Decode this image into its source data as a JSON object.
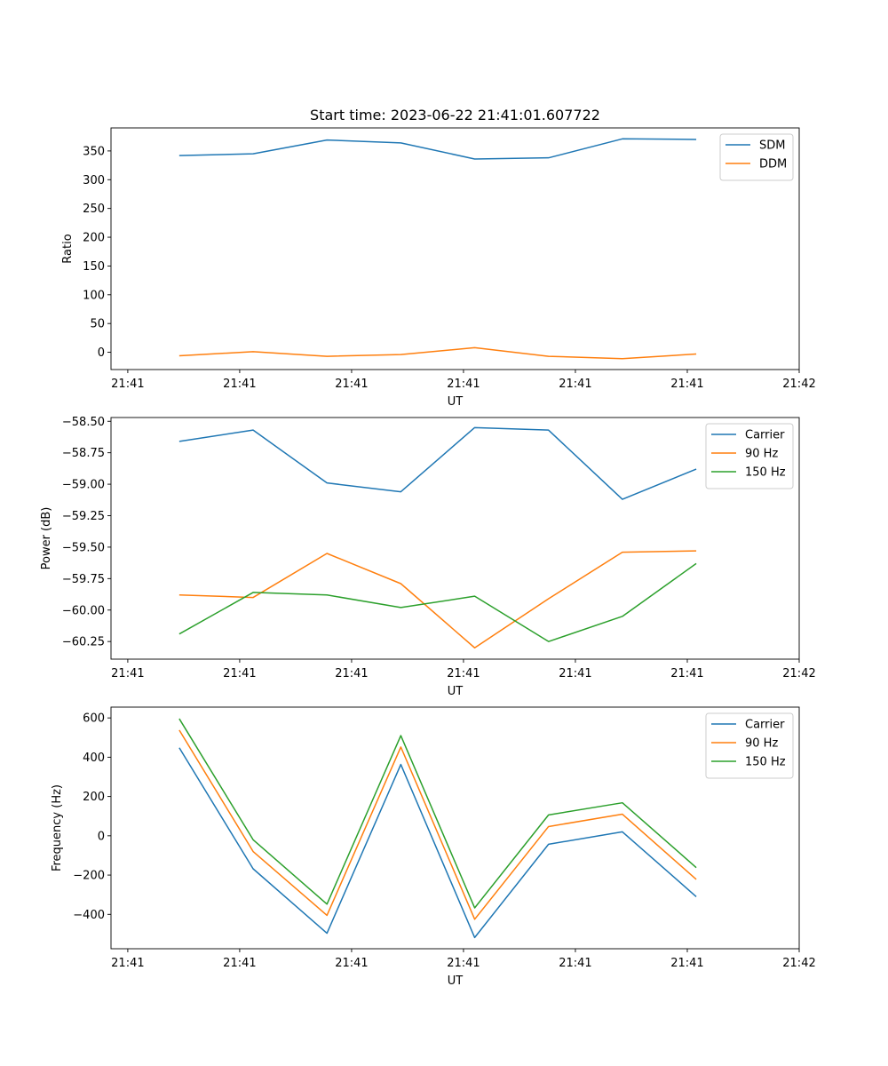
{
  "chart_data": [
    {
      "type": "line",
      "title": "Start time: 2023-06-22 21:41:01.607722",
      "xlabel": "UT",
      "ylabel": "Ratio",
      "x_tick_labels": [
        "21:41",
        "21:41",
        "21:41",
        "21:41",
        "21:41",
        "21:41",
        "21:42"
      ],
      "x_tick_positions": [
        -0.1,
        0.4,
        0.9,
        1.4,
        1.9,
        2.4,
        2.9
      ],
      "x": [
        0.13,
        0.46,
        0.79,
        1.12,
        1.45,
        1.78,
        2.11,
        2.44
      ],
      "xlim": [
        -0.175,
        2.9
      ],
      "ylim": [
        -30,
        390
      ],
      "y_ticks": [
        0,
        50,
        100,
        150,
        200,
        250,
        300,
        350
      ],
      "y_tick_labels": [
        "0",
        "50",
        "100",
        "150",
        "200",
        "250",
        "300",
        "350"
      ],
      "legend": "top-right",
      "series": [
        {
          "name": "SDM",
          "color": "#1f77b4",
          "values": [
            342,
            345,
            369,
            364,
            336,
            338,
            371,
            370
          ]
        },
        {
          "name": "DDM",
          "color": "#ff7f0e",
          "values": [
            -6,
            1,
            -7,
            -4,
            8,
            -7,
            -11,
            -3
          ]
        }
      ]
    },
    {
      "type": "line",
      "title": "",
      "xlabel": "UT",
      "ylabel": "Power (dB)",
      "x_tick_labels": [
        "21:41",
        "21:41",
        "21:41",
        "21:41",
        "21:41",
        "21:41",
        "21:42"
      ],
      "x_tick_positions": [
        -0.1,
        0.4,
        0.9,
        1.4,
        1.9,
        2.4,
        2.9
      ],
      "x": [
        0.13,
        0.46,
        0.79,
        1.12,
        1.45,
        1.78,
        2.11,
        2.44
      ],
      "xlim": [
        -0.175,
        2.9
      ],
      "ylim": [
        -60.39,
        -58.47
      ],
      "y_ticks": [
        -60.25,
        -60.0,
        -59.75,
        -59.5,
        -59.25,
        -59.0,
        -58.75,
        -58.5
      ],
      "y_tick_labels": [
        "−60.25",
        "−60.00",
        "−59.75",
        "−59.50",
        "−59.25",
        "−59.00",
        "−58.75",
        "−58.50"
      ],
      "legend": "top-right",
      "series": [
        {
          "name": "Carrier",
          "color": "#1f77b4",
          "values": [
            -58.66,
            -58.57,
            -58.99,
            -59.06,
            -58.55,
            -58.57,
            -59.12,
            -58.88
          ]
        },
        {
          "name": "90 Hz",
          "color": "#ff7f0e",
          "values": [
            -59.88,
            -59.9,
            -59.55,
            -59.79,
            -60.3,
            -59.91,
            -59.54,
            -59.53
          ]
        },
        {
          "name": "150 Hz",
          "color": "#2ca02c",
          "values": [
            -60.19,
            -59.86,
            -59.88,
            -59.98,
            -59.89,
            -60.25,
            -60.05,
            -59.63
          ]
        }
      ]
    },
    {
      "type": "line",
      "title": "",
      "xlabel": "UT",
      "ylabel": "Frequency (Hz)",
      "x_tick_labels": [
        "21:41",
        "21:41",
        "21:41",
        "21:41",
        "21:41",
        "21:41",
        "21:42"
      ],
      "x_tick_positions": [
        -0.1,
        0.4,
        0.9,
        1.4,
        1.9,
        2.4,
        2.9
      ],
      "x": [
        0.13,
        0.46,
        0.79,
        1.12,
        1.45,
        1.78,
        2.11,
        2.44
      ],
      "xlim": [
        -0.175,
        2.9
      ],
      "ylim": [
        -575,
        655
      ],
      "y_ticks": [
        -400,
        -200,
        0,
        200,
        400,
        600
      ],
      "y_tick_labels": [
        "−400",
        "−200",
        "0",
        "200",
        "400",
        "600"
      ],
      "legend": "top-right",
      "series": [
        {
          "name": "Carrier",
          "color": "#1f77b4",
          "values": [
            448,
            -168,
            -496,
            363,
            -518,
            -43,
            20,
            -310
          ]
        },
        {
          "name": "90 Hz",
          "color": "#ff7f0e",
          "values": [
            538,
            -80,
            -405,
            452,
            -425,
            47,
            110,
            -222
          ]
        },
        {
          "name": "150 Hz",
          "color": "#2ca02c",
          "values": [
            596,
            -20,
            -348,
            510,
            -367,
            106,
            168,
            -162
          ]
        }
      ]
    }
  ]
}
